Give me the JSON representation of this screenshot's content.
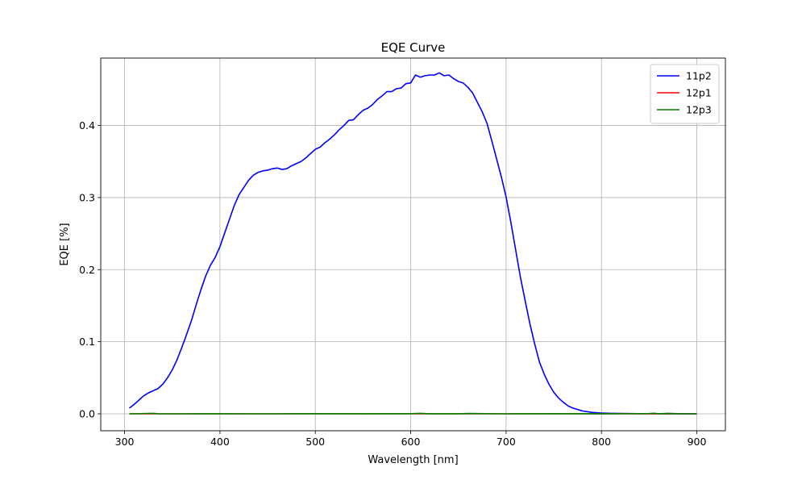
{
  "chart_data": {
    "type": "line",
    "title": "EQE Curve",
    "xlabel": "Wavelength [nm]",
    "ylabel": "EQE [%]",
    "xlim": [
      275,
      930
    ],
    "ylim": [
      -0.0235,
      0.4935
    ],
    "xticks": [
      300,
      400,
      500,
      600,
      700,
      800,
      900
    ],
    "yticks": [
      0.0,
      0.1,
      0.2,
      0.3,
      0.4
    ],
    "xtick_labels": [
      "300",
      "400",
      "500",
      "600",
      "700",
      "800",
      "900"
    ],
    "ytick_labels": [
      "0.0",
      "0.1",
      "0.2",
      "0.3",
      "0.4"
    ],
    "grid": true,
    "legend_position": "top-right",
    "series": [
      {
        "name": "11p2",
        "color": "#0000ff",
        "x": [
          305,
          310,
          315,
          320,
          325,
          330,
          335,
          340,
          345,
          350,
          355,
          360,
          365,
          370,
          375,
          380,
          385,
          390,
          395,
          400,
          405,
          410,
          415,
          420,
          425,
          430,
          435,
          440,
          445,
          450,
          455,
          460,
          465,
          470,
          475,
          480,
          485,
          490,
          495,
          500,
          505,
          510,
          515,
          520,
          525,
          530,
          535,
          540,
          545,
          550,
          555,
          560,
          565,
          570,
          575,
          580,
          585,
          590,
          595,
          600,
          605,
          610,
          615,
          620,
          625,
          630,
          635,
          640,
          645,
          650,
          655,
          660,
          665,
          670,
          675,
          680,
          685,
          690,
          695,
          700,
          705,
          710,
          715,
          720,
          725,
          730,
          735,
          740,
          745,
          750,
          755,
          760,
          765,
          770,
          775,
          780,
          785,
          790,
          795,
          800,
          810,
          820,
          830,
          840,
          850,
          860,
          870,
          880,
          890,
          900
        ],
        "y": [
          0.008,
          0.013,
          0.019,
          0.025,
          0.029,
          0.032,
          0.035,
          0.041,
          0.05,
          0.061,
          0.075,
          0.092,
          0.11,
          0.129,
          0.151,
          0.172,
          0.191,
          0.206,
          0.217,
          0.232,
          0.251,
          0.27,
          0.289,
          0.304,
          0.314,
          0.324,
          0.331,
          0.335,
          0.337,
          0.338,
          0.34,
          0.341,
          0.339,
          0.34,
          0.344,
          0.347,
          0.35,
          0.355,
          0.361,
          0.367,
          0.37,
          0.376,
          0.381,
          0.387,
          0.394,
          0.4,
          0.407,
          0.408,
          0.415,
          0.421,
          0.424,
          0.429,
          0.436,
          0.441,
          0.447,
          0.447,
          0.451,
          0.452,
          0.458,
          0.459,
          0.47,
          0.467,
          0.469,
          0.47,
          0.47,
          0.473,
          0.469,
          0.47,
          0.465,
          0.461,
          0.459,
          0.453,
          0.445,
          0.432,
          0.419,
          0.403,
          0.379,
          0.354,
          0.329,
          0.301,
          0.266,
          0.228,
          0.19,
          0.157,
          0.125,
          0.097,
          0.072,
          0.055,
          0.041,
          0.03,
          0.022,
          0.016,
          0.011,
          0.008,
          0.006,
          0.004,
          0.003,
          0.002,
          0.0015,
          0.001,
          0.0007,
          0.0005,
          0.0003,
          0.0002,
          0.0002,
          0.0001,
          0.0001,
          0.0001,
          0.0001,
          0.0001
        ]
      },
      {
        "name": "12p1",
        "color": "#ff0000",
        "x": [
          305,
          350,
          400,
          450,
          500,
          550,
          600,
          650,
          700,
          750,
          800,
          850,
          900
        ],
        "y": [
          0.0,
          0.0,
          0.0,
          0.0,
          0.0,
          0.0,
          0.0,
          0.0,
          0.0,
          0.0,
          0.0,
          0.0,
          0.0
        ]
      },
      {
        "name": "12p3",
        "color": "#008000",
        "x": [
          305,
          330,
          335,
          350,
          400,
          450,
          500,
          550,
          600,
          610,
          620,
          650,
          660,
          700,
          750,
          800,
          850,
          855,
          860,
          870,
          880,
          900
        ],
        "y": [
          0.0,
          0.0007,
          0.0001,
          0.0,
          0.0001,
          0.0,
          0.0002,
          0.0001,
          0.0002,
          0.0006,
          0.0001,
          0.0001,
          0.0005,
          0.0,
          0.0002,
          0.0001,
          0.0003,
          0.0008,
          0.0001,
          0.0006,
          0.0002,
          0.0
        ]
      }
    ]
  }
}
